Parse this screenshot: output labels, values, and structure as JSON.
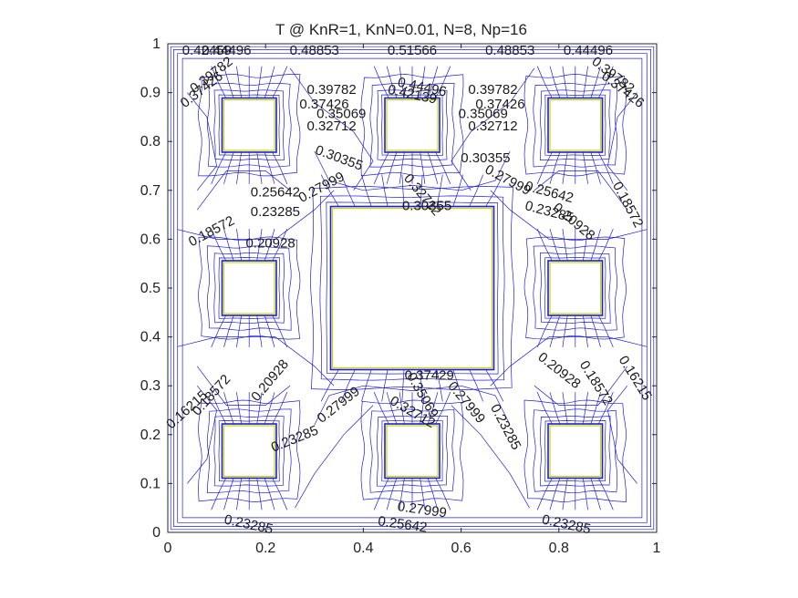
{
  "chart_data": {
    "type": "contour",
    "title": "T @ KnR=1, KnN=0.01, N=8, Np=16",
    "xlabel": "",
    "ylabel": "",
    "xlim": [
      0,
      1
    ],
    "ylim": [
      0,
      1
    ],
    "grid": false,
    "x_ticks": [
      "0",
      "0.2",
      "0.4",
      "0.6",
      "0.8",
      "1"
    ],
    "y_ticks": [
      "0",
      "0.1",
      "0.2",
      "0.3",
      "0.4",
      "0.5",
      "0.6",
      "0.7",
      "0.8",
      "0.9",
      "1"
    ],
    "contour_color": "#1f1fd6",
    "obstacle_edge_color": "#c8d800",
    "obstacles": [
      {
        "x0": 0.333,
        "y0": 0.333,
        "x1": 0.667,
        "y1": 0.667
      },
      {
        "x0": 0.111,
        "y0": 0.111,
        "x1": 0.222,
        "y1": 0.222
      },
      {
        "x0": 0.444,
        "y0": 0.111,
        "x1": 0.556,
        "y1": 0.222
      },
      {
        "x0": 0.778,
        "y0": 0.111,
        "x1": 0.889,
        "y1": 0.222
      },
      {
        "x0": 0.111,
        "y0": 0.444,
        "x1": 0.222,
        "y1": 0.556
      },
      {
        "x0": 0.778,
        "y0": 0.444,
        "x1": 0.889,
        "y1": 0.556
      },
      {
        "x0": 0.111,
        "y0": 0.778,
        "x1": 0.222,
        "y1": 0.889
      },
      {
        "x0": 0.444,
        "y0": 0.778,
        "x1": 0.556,
        "y1": 0.889
      },
      {
        "x0": 0.778,
        "y0": 0.778,
        "x1": 0.889,
        "y1": 0.889
      }
    ],
    "contour_labels": [
      {
        "text": "0.42459",
        "x": 0.08,
        "y": 0.985,
        "rot": 0
      },
      {
        "text": "0.44496",
        "x": 0.12,
        "y": 0.985,
        "rot": 0
      },
      {
        "text": "0.48853",
        "x": 0.3,
        "y": 0.985,
        "rot": 0
      },
      {
        "text": "0.51566",
        "x": 0.5,
        "y": 0.985,
        "rot": 0
      },
      {
        "text": "0.48853",
        "x": 0.7,
        "y": 0.985,
        "rot": 0
      },
      {
        "text": "0.44496",
        "x": 0.86,
        "y": 0.985,
        "rot": 0
      },
      {
        "text": "0.39782",
        "x": 0.09,
        "y": 0.935,
        "rot": 38
      },
      {
        "text": "0.37426",
        "x": 0.07,
        "y": 0.905,
        "rot": 38
      },
      {
        "text": "0.39782",
        "x": 0.91,
        "y": 0.935,
        "rot": -38
      },
      {
        "text": "0.37426",
        "x": 0.93,
        "y": 0.905,
        "rot": -38
      },
      {
        "text": "0.39782",
        "x": 0.335,
        "y": 0.905,
        "rot": 0
      },
      {
        "text": "0.37426",
        "x": 0.32,
        "y": 0.875,
        "rot": 0
      },
      {
        "text": "0.35069",
        "x": 0.355,
        "y": 0.855,
        "rot": 0
      },
      {
        "text": "0.32712",
        "x": 0.335,
        "y": 0.83,
        "rot": 0
      },
      {
        "text": "0.42139",
        "x": 0.5,
        "y": 0.895,
        "rot": -12
      },
      {
        "text": "0.44496",
        "x": 0.52,
        "y": 0.91,
        "rot": -12
      },
      {
        "text": "0.39782",
        "x": 0.665,
        "y": 0.905,
        "rot": 0
      },
      {
        "text": "0.37426",
        "x": 0.68,
        "y": 0.875,
        "rot": 0
      },
      {
        "text": "0.35069",
        "x": 0.645,
        "y": 0.855,
        "rot": 0
      },
      {
        "text": "0.32712",
        "x": 0.665,
        "y": 0.83,
        "rot": 0
      },
      {
        "text": "0.30355",
        "x": 0.35,
        "y": 0.765,
        "rot": -20
      },
      {
        "text": "0.30355",
        "x": 0.65,
        "y": 0.765,
        "rot": 0
      },
      {
        "text": "0.27999",
        "x": 0.315,
        "y": 0.705,
        "rot": 28
      },
      {
        "text": "0.27999",
        "x": 0.695,
        "y": 0.72,
        "rot": -28
      },
      {
        "text": "0.32712",
        "x": 0.52,
        "y": 0.69,
        "rot": -50
      },
      {
        "text": "0.30355",
        "x": 0.53,
        "y": 0.667,
        "rot": 0
      },
      {
        "text": "0.25642",
        "x": 0.22,
        "y": 0.695,
        "rot": 0
      },
      {
        "text": "0.23285",
        "x": 0.22,
        "y": 0.655,
        "rot": 0
      },
      {
        "text": "0.25642",
        "x": 0.78,
        "y": 0.695,
        "rot": -15
      },
      {
        "text": "0.23285",
        "x": 0.78,
        "y": 0.655,
        "rot": -15
      },
      {
        "text": "0.18572",
        "x": 0.09,
        "y": 0.615,
        "rot": 28
      },
      {
        "text": "0.20928",
        "x": 0.21,
        "y": 0.59,
        "rot": 0
      },
      {
        "text": "0.20928",
        "x": 0.83,
        "y": 0.635,
        "rot": -40
      },
      {
        "text": "0.18572",
        "x": 0.94,
        "y": 0.67,
        "rot": -62
      },
      {
        "text": "0.37429",
        "x": 0.535,
        "y": 0.32,
        "rot": 0
      },
      {
        "text": "0.35069",
        "x": 0.52,
        "y": 0.28,
        "rot": -60
      },
      {
        "text": "0.32712",
        "x": 0.5,
        "y": 0.245,
        "rot": -30
      },
      {
        "text": "0.27999",
        "x": 0.35,
        "y": 0.26,
        "rot": 38
      },
      {
        "text": "0.27999",
        "x": 0.61,
        "y": 0.265,
        "rot": -50
      },
      {
        "text": "0.20928",
        "x": 0.21,
        "y": 0.31,
        "rot": 50
      },
      {
        "text": "0.18572",
        "x": 0.09,
        "y": 0.28,
        "rot": 48
      },
      {
        "text": "0.16215",
        "x": 0.04,
        "y": 0.25,
        "rot": 42
      },
      {
        "text": "0.23285",
        "x": 0.26,
        "y": 0.19,
        "rot": 22
      },
      {
        "text": "0.23285",
        "x": 0.69,
        "y": 0.215,
        "rot": -62
      },
      {
        "text": "0.20928",
        "x": 0.8,
        "y": 0.33,
        "rot": -38
      },
      {
        "text": "0.18572",
        "x": 0.875,
        "y": 0.305,
        "rot": -58
      },
      {
        "text": "0.16215",
        "x": 0.955,
        "y": 0.315,
        "rot": -58
      },
      {
        "text": "0.23285",
        "x": 0.165,
        "y": 0.015,
        "rot": -12
      },
      {
        "text": "0.27999",
        "x": 0.52,
        "y": 0.045,
        "rot": -8
      },
      {
        "text": "0.25642",
        "x": 0.48,
        "y": 0.015,
        "rot": -8
      },
      {
        "text": "0.23285",
        "x": 0.815,
        "y": 0.015,
        "rot": -12
      }
    ]
  }
}
